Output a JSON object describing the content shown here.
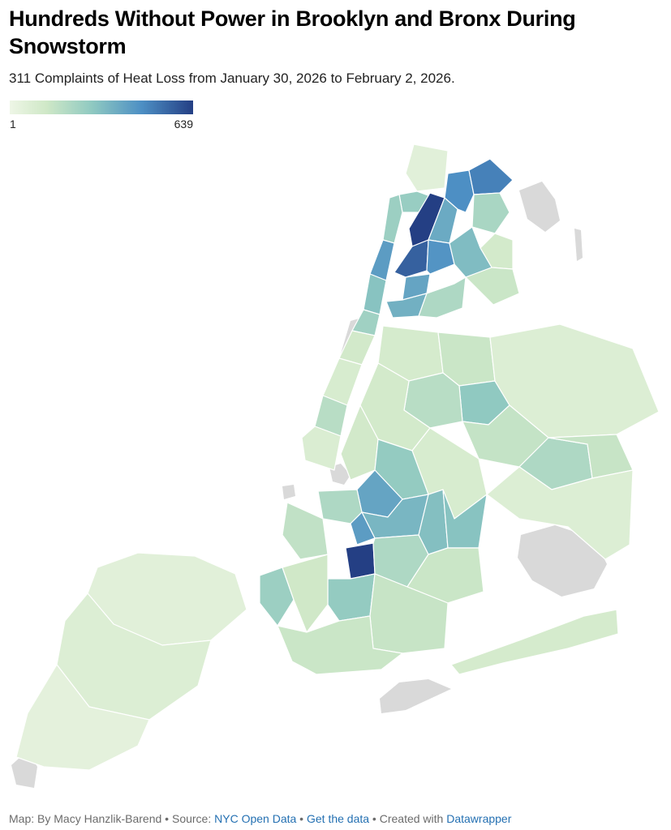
{
  "title": "Hundreds Without Power in Brooklyn and Bronx During Snowstorm",
  "subtitle": "311 Complaints of Heat Loss from January 30, 2026 to February 2, 2026.",
  "legend": {
    "min_label": "1",
    "max_label": "639",
    "min": 1,
    "max": 639
  },
  "colors": {
    "no_data": "#d9d9d9",
    "scale": [
      "#eef6e6",
      "#cfe8c7",
      "#8fc9c1",
      "#4d8fc4",
      "#243f84"
    ]
  },
  "footer": {
    "map_credit": "Map: By Macy Hanzlik-Barend",
    "sep1": " • Source: ",
    "source_link": "NYC Open Data",
    "sep2": " • ",
    "get_data_link": "Get the data",
    "sep3": " • Created with ",
    "tool_link": "Datawrapper"
  },
  "map_regions": [
    {
      "id": "bronx-riverdale",
      "value": 12
    },
    {
      "id": "bronx-kingsbridge",
      "value": 160
    },
    {
      "id": "bronx-fordham-west",
      "value": 639
    },
    {
      "id": "bronx-bedford-park",
      "value": 280
    },
    {
      "id": "bronx-norwood",
      "value": 380
    },
    {
      "id": "bronx-wakefield",
      "value": 420
    },
    {
      "id": "bronx-co-op-city",
      "value": 120
    },
    {
      "id": "bronx-pelham",
      "value": 40
    },
    {
      "id": "bronx-morris-heights",
      "value": 520
    },
    {
      "id": "bronx-tremont",
      "value": 360
    },
    {
      "id": "bronx-morrisania",
      "value": 300
    },
    {
      "id": "bronx-parkchester",
      "value": 220
    },
    {
      "id": "bronx-throgs-neck",
      "value": 60
    },
    {
      "id": "bronx-mott-haven",
      "value": 260
    },
    {
      "id": "bronx-hunts-point",
      "value": 110
    },
    {
      "id": "manhattan-inwood",
      "value": 150
    },
    {
      "id": "manhattan-washington-heights",
      "value": 330
    },
    {
      "id": "manhattan-harlem",
      "value": 200
    },
    {
      "id": "manhattan-east-harlem",
      "value": 140
    },
    {
      "id": "manhattan-upper-west",
      "value": 45
    },
    {
      "id": "manhattan-midtown",
      "value": 30
    },
    {
      "id": "manhattan-lower-east",
      "value": 90
    },
    {
      "id": "manhattan-downtown",
      "value": 25
    },
    {
      "id": "queens-astoria",
      "value": 35
    },
    {
      "id": "queens-jackson-heights",
      "value": 60
    },
    {
      "id": "queens-flushing",
      "value": 180
    },
    {
      "id": "queens-bayside",
      "value": 20
    },
    {
      "id": "queens-elmhurst",
      "value": 90
    },
    {
      "id": "queens-forest-hills",
      "value": 70
    },
    {
      "id": "queens-jamaica",
      "value": 110
    },
    {
      "id": "queens-hollis",
      "value": 65
    },
    {
      "id": "queens-ridgewood",
      "value": 40
    },
    {
      "id": "queens-ozone-park",
      "value": 30
    },
    {
      "id": "queens-southeast",
      "value": 20
    },
    {
      "id": "queens-rockaway",
      "value": 35
    },
    {
      "id": "brooklyn-williamsburg",
      "value": 45
    },
    {
      "id": "brooklyn-bushwick",
      "value": 170
    },
    {
      "id": "brooklyn-bed-stuy",
      "value": 300
    },
    {
      "id": "brooklyn-crown-heights",
      "value": 240
    },
    {
      "id": "brooklyn-brownsville",
      "value": 210
    },
    {
      "id": "brooklyn-east-new-york",
      "value": 200
    },
    {
      "id": "brooklyn-park-slope",
      "value": 110
    },
    {
      "id": "brooklyn-sunset-park",
      "value": 75
    },
    {
      "id": "brooklyn-prospect-lefferts",
      "value": 330
    },
    {
      "id": "brooklyn-flatbush",
      "value": 639
    },
    {
      "id": "brooklyn-east-flatbush",
      "value": 110
    },
    {
      "id": "brooklyn-canarsie",
      "value": 60
    },
    {
      "id": "brooklyn-bay-ridge",
      "value": 150
    },
    {
      "id": "brooklyn-midwood",
      "value": 170
    },
    {
      "id": "brooklyn-bensonhurst",
      "value": 50
    },
    {
      "id": "brooklyn-sheepshead",
      "value": 65
    },
    {
      "id": "brooklyn-coney-island",
      "value": 60
    },
    {
      "id": "staten-island-north",
      "value": 12
    },
    {
      "id": "staten-island-mid",
      "value": 20
    },
    {
      "id": "staten-island-south",
      "value": 8
    }
  ]
}
